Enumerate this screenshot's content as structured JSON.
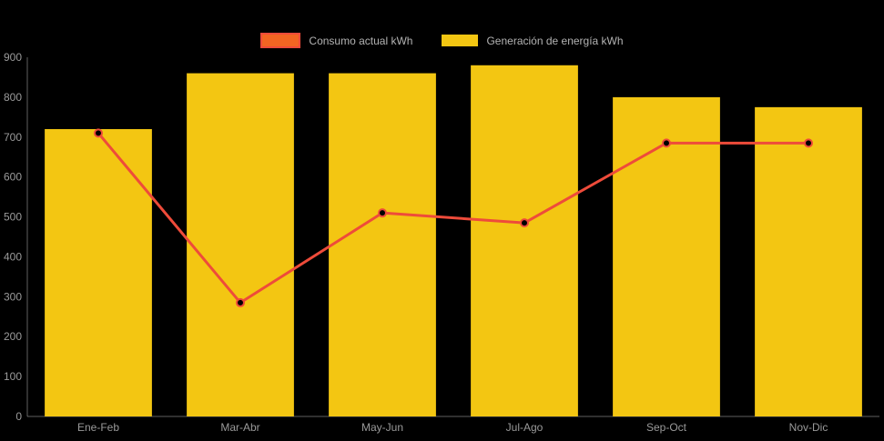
{
  "chart_data": {
    "type": "bar",
    "combo": "bar+line",
    "categories": [
      "Ene-Feb",
      "Mar-Abr",
      "May-Jun",
      "Jul-Ago",
      "Sep-Oct",
      "Nov-Dic"
    ],
    "series": [
      {
        "name": "Consumo actual kWh",
        "type": "line",
        "color": "#ee4b3a",
        "fill_color": "#f26522",
        "values": [
          710,
          285,
          510,
          485,
          685,
          685
        ]
      },
      {
        "name": "Generación de energía kWh",
        "type": "bar",
        "color": "#f3c612",
        "values": [
          720,
          860,
          860,
          880,
          800,
          775
        ]
      }
    ],
    "title": "",
    "xlabel": "",
    "ylabel": "",
    "ylim": [
      0,
      900
    ],
    "ytick_step": 100,
    "yticks": [
      0,
      100,
      200,
      300,
      400,
      500,
      600,
      700,
      800,
      900
    ],
    "grid": false,
    "legend_position": "top-center",
    "background": "#000000",
    "text_color": "#9a9a9a",
    "axis_color": "#d8d8d8"
  }
}
